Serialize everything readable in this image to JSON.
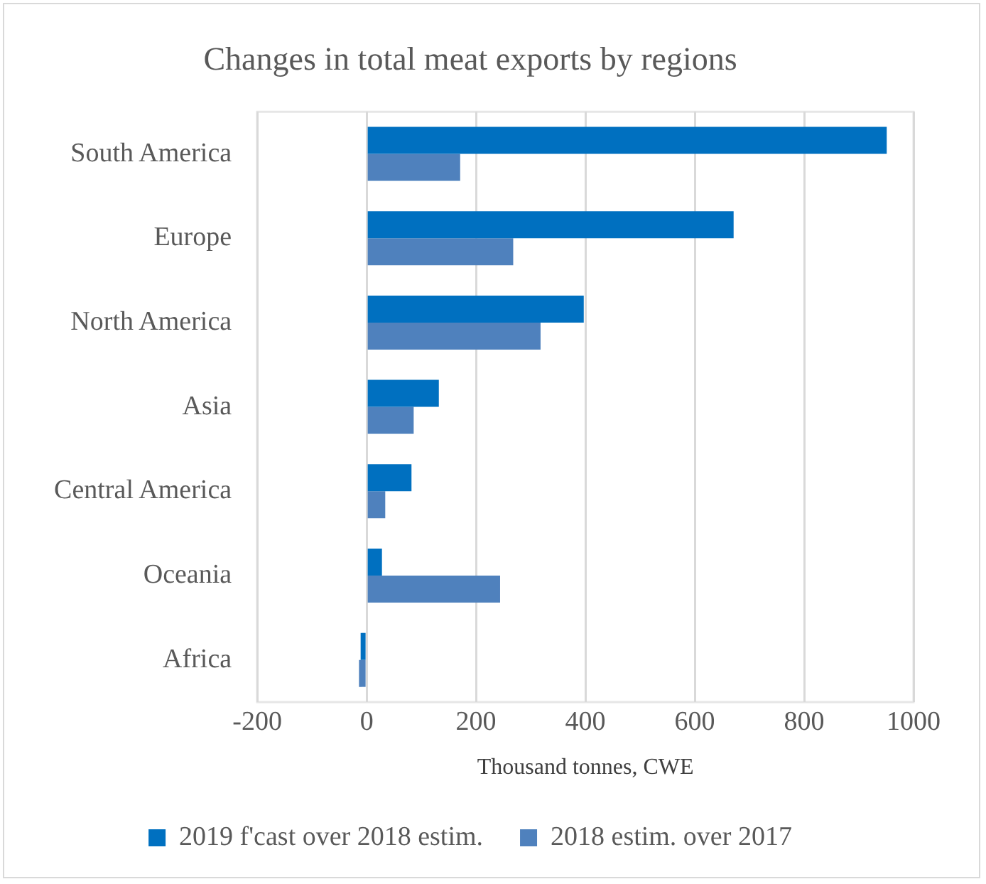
{
  "chart_data": {
    "type": "bar",
    "orientation": "horizontal",
    "title": "Changes in total meat exports by regions",
    "xlabel": "Thousand tonnes, CWE",
    "categories": [
      "South America",
      "Europe",
      "North America",
      "Asia",
      "Central America",
      "Oceania",
      "Africa"
    ],
    "series": [
      {
        "name": "2019 f'cast over 2018 estim.",
        "color": "#0070c0",
        "values": [
          951,
          671,
          397,
          132,
          82,
          28,
          -11
        ]
      },
      {
        "name": "2018 estim. over 2017",
        "color": "#4f81bd",
        "values": [
          171,
          268,
          318,
          86,
          34,
          244,
          -14
        ]
      }
    ],
    "xlim": [
      -200,
      1000
    ],
    "xticks": [
      -200,
      0,
      200,
      400,
      600,
      800,
      1000
    ],
    "grid": "x",
    "legend": "bottom"
  }
}
